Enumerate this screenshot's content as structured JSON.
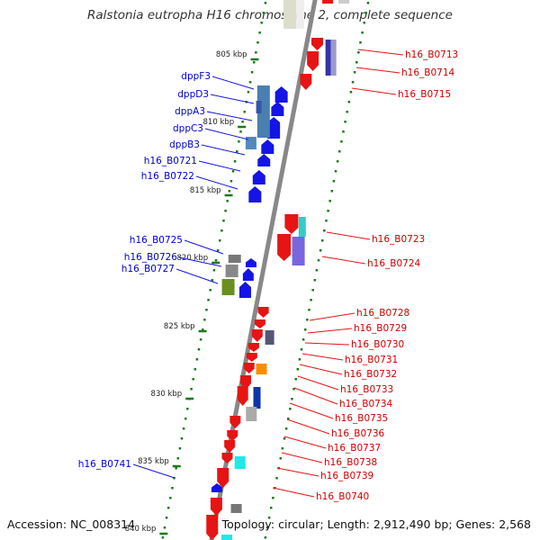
{
  "title": "Ralstonia eutropha H16 chromosome 2, complete sequence",
  "footer": {
    "accession": "Accession: NC_008314",
    "summary": "Topology: circular; Length: 2,912,490 bp; Genes: 2,568"
  },
  "colors": {
    "forward": "#e61414",
    "reverse": "#1414e6",
    "backbone": "#888888",
    "tick": "#1a7a1a",
    "forward_label": "#cc0000",
    "reverse_label": "#0000cc"
  },
  "bp_ticks": [
    "805 kbp",
    "810 kbp",
    "815 kbp",
    "820 kbp",
    "825 kbp",
    "830 kbp",
    "835 kbp",
    "840 kbp"
  ],
  "genes_reverse": [
    "dppF3",
    "dppD3",
    "dppA3",
    "dppC3",
    "dppB3",
    "h16_B0721",
    "h16_B0722",
    "h16_B0725",
    "h16_B0726",
    "h16_B0727",
    "h16_B0741"
  ],
  "genes_forward": [
    "h16_B0713",
    "h16_B0714",
    "h16_B0715",
    "h16_B0723",
    "h16_B0724",
    "h16_B0728",
    "h16_B0729",
    "h16_B0730",
    "h16_B0731",
    "h16_B0732",
    "h16_B0733",
    "h16_B0734",
    "h16_B0735",
    "h16_B0736",
    "h16_B0737",
    "h16_B0738",
    "h16_B0739",
    "h16_B0740"
  ]
}
